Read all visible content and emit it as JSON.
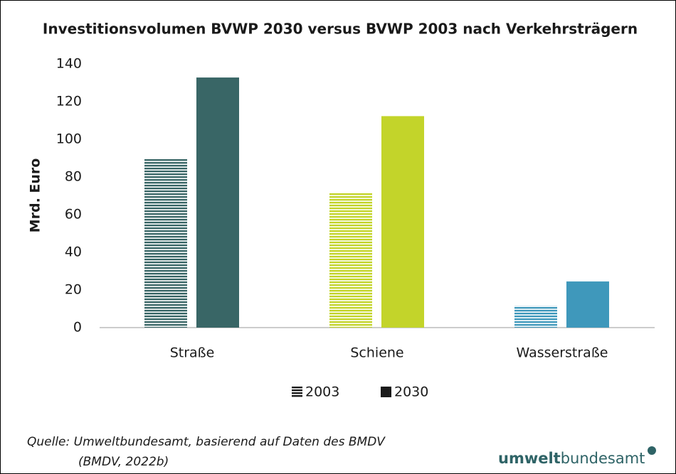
{
  "chart_data": {
    "type": "bar",
    "title": "Investitionsvolumen BVWP 2030 versus BVWP 2003 nach Verkehrsträgern",
    "y_label": "Mrd. Euro",
    "categories": [
      "Straße",
      "Schiene",
      "Wasserstraße"
    ],
    "category_colors": [
      "#396666",
      "#c3d42a",
      "#3f98bb"
    ],
    "series": [
      {
        "name": "2003",
        "pattern": "hatched",
        "values": [
          89.7,
          71.8,
          11.6
        ]
      },
      {
        "name": "2030",
        "pattern": "solid",
        "values": [
          132.8,
          112.3,
          24.5
        ]
      }
    ],
    "legend_color": "#1a1a1a",
    "ylim": [
      0,
      140
    ],
    "yticks": [
      0,
      20,
      40,
      60,
      80,
      100,
      120,
      140
    ],
    "grid": false,
    "source": [
      "Quelle: Umweltbundesamt, basierend auf Daten des BMDV",
      "(BMDV, 2022b)"
    ],
    "logo": [
      "umwelt",
      "bundesamt"
    ]
  }
}
